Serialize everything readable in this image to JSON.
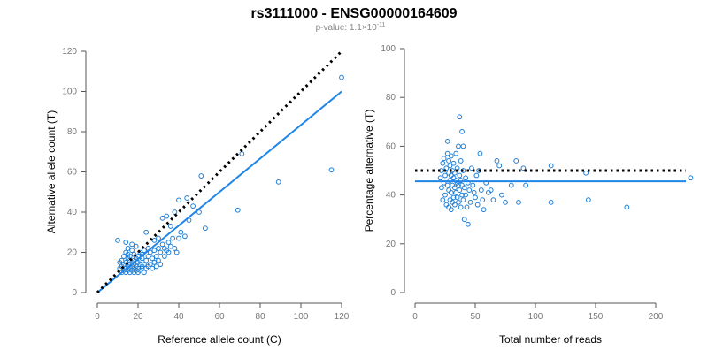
{
  "header": {
    "title": "rs3111000 - ENSG00000164609",
    "pvalue_prefix": "p-value: 1.1×10",
    "pvalue_exponent": "-11"
  },
  "colors": {
    "points": "#1f7ed6",
    "fit_line": "#1f86e8",
    "reference_line": "#000000",
    "axis": "#555555",
    "tick_text": "#777777"
  },
  "chart_data": [
    {
      "id": "left",
      "type": "scatter",
      "title": "",
      "xlabel": "Reference allele count (C)",
      "ylabel": "Alternative allele count (T)",
      "xlim": [
        0,
        120
      ],
      "ylim": [
        0,
        120
      ],
      "xticks": [
        0,
        20,
        40,
        60,
        80,
        100,
        120
      ],
      "yticks": [
        0,
        20,
        40,
        60,
        80,
        100,
        120
      ],
      "reference_line": {
        "style": "dotted",
        "from": [
          0,
          0
        ],
        "to": [
          120,
          120
        ]
      },
      "fit_line": {
        "style": "solid",
        "from": [
          0,
          0
        ],
        "to": [
          120,
          100
        ]
      },
      "points": [
        [
          10,
          26
        ],
        [
          11,
          12
        ],
        [
          11,
          15
        ],
        [
          12,
          10
        ],
        [
          12,
          13
        ],
        [
          12,
          16
        ],
        [
          13,
          11
        ],
        [
          13,
          14
        ],
        [
          13,
          18
        ],
        [
          14,
          10
        ],
        [
          14,
          12
        ],
        [
          14,
          15
        ],
        [
          14,
          20
        ],
        [
          14,
          25
        ],
        [
          15,
          11
        ],
        [
          15,
          13
        ],
        [
          15,
          17
        ],
        [
          15,
          19
        ],
        [
          15,
          22
        ],
        [
          16,
          10
        ],
        [
          16,
          12
        ],
        [
          16,
          14
        ],
        [
          16,
          16
        ],
        [
          16,
          18
        ],
        [
          17,
          11
        ],
        [
          17,
          13
        ],
        [
          17,
          15
        ],
        [
          17,
          21
        ],
        [
          17,
          24
        ],
        [
          18,
          10
        ],
        [
          18,
          12
        ],
        [
          18,
          14
        ],
        [
          18,
          16
        ],
        [
          18,
          19
        ],
        [
          19,
          11
        ],
        [
          19,
          13
        ],
        [
          19,
          17
        ],
        [
          19,
          23
        ],
        [
          20,
          10
        ],
        [
          20,
          12
        ],
        [
          20,
          15
        ],
        [
          20,
          18
        ],
        [
          21,
          11
        ],
        [
          21,
          14
        ],
        [
          21,
          16
        ],
        [
          21,
          20
        ],
        [
          22,
          12
        ],
        [
          22,
          13
        ],
        [
          22,
          17
        ],
        [
          22,
          19
        ],
        [
          23,
          10
        ],
        [
          23,
          14
        ],
        [
          23,
          21
        ],
        [
          24,
          12
        ],
        [
          24,
          16
        ],
        [
          24,
          30
        ],
        [
          25,
          13
        ],
        [
          25,
          18
        ],
        [
          25,
          22
        ],
        [
          26,
          14
        ],
        [
          26,
          20
        ],
        [
          27,
          12
        ],
        [
          27,
          17
        ],
        [
          28,
          15
        ],
        [
          28,
          21
        ],
        [
          28,
          26
        ],
        [
          29,
          13
        ],
        [
          29,
          18
        ],
        [
          30,
          16
        ],
        [
          30,
          22
        ],
        [
          30,
          27
        ],
        [
          31,
          14
        ],
        [
          31,
          20
        ],
        [
          32,
          24
        ],
        [
          32,
          37
        ],
        [
          33,
          18
        ],
        [
          33,
          22
        ],
        [
          34,
          21
        ],
        [
          34,
          38
        ],
        [
          35,
          20
        ],
        [
          35,
          25
        ],
        [
          36,
          23
        ],
        [
          36,
          33
        ],
        [
          37,
          27
        ],
        [
          38,
          22
        ],
        [
          38,
          40
        ],
        [
          39,
          20
        ],
        [
          40,
          27
        ],
        [
          40,
          46
        ],
        [
          41,
          30
        ],
        [
          43,
          28
        ],
        [
          44,
          47
        ],
        [
          45,
          36
        ],
        [
          47,
          43
        ],
        [
          50,
          40
        ],
        [
          51,
          58
        ],
        [
          53,
          32
        ],
        [
          69,
          41
        ],
        [
          71,
          69
        ],
        [
          89,
          55
        ],
        [
          115,
          61
        ],
        [
          120,
          107
        ]
      ]
    },
    {
      "id": "right",
      "type": "scatter",
      "title": "",
      "xlabel": "Total number of reads",
      "ylabel": "Percentage alternative (T)",
      "xlim": [
        0,
        225
      ],
      "ylim": [
        0,
        100
      ],
      "xticks": [
        0,
        50,
        100,
        150,
        200
      ],
      "yticks": [
        0,
        20,
        40,
        60,
        80,
        100
      ],
      "reference_line": {
        "style": "dotted",
        "from": [
          0,
          50
        ],
        "to": [
          225,
          50
        ]
      },
      "fit_line": {
        "style": "solid",
        "from": [
          0,
          45.6
        ],
        "to": [
          225,
          45.6
        ]
      },
      "points": [
        [
          21,
          47
        ],
        [
          22,
          43
        ],
        [
          22,
          50
        ],
        [
          23,
          38
        ],
        [
          23,
          53
        ],
        [
          24,
          45
        ],
        [
          24,
          55
        ],
        [
          25,
          40
        ],
        [
          25,
          48
        ],
        [
          26,
          36
        ],
        [
          26,
          51
        ],
        [
          27,
          44
        ],
        [
          27,
          57
        ],
        [
          27,
          62
        ],
        [
          28,
          35
        ],
        [
          28,
          42
        ],
        [
          28,
          49
        ],
        [
          28,
          54
        ],
        [
          29,
          38
        ],
        [
          29,
          46
        ],
        [
          29,
          52
        ],
        [
          30,
          34
        ],
        [
          30,
          41
        ],
        [
          30,
          48
        ],
        [
          30,
          56
        ],
        [
          31,
          37
        ],
        [
          31,
          44
        ],
        [
          31,
          50
        ],
        [
          32,
          39
        ],
        [
          32,
          47
        ],
        [
          32,
          53
        ],
        [
          33,
          36
        ],
        [
          33,
          43
        ],
        [
          33,
          49
        ],
        [
          34,
          41
        ],
        [
          34,
          46
        ],
        [
          34,
          57
        ],
        [
          35,
          39
        ],
        [
          35,
          45
        ],
        [
          35,
          51
        ],
        [
          36,
          37
        ],
        [
          36,
          44
        ],
        [
          36,
          60
        ],
        [
          37,
          42
        ],
        [
          37,
          48
        ],
        [
          37,
          72
        ],
        [
          38,
          35
        ],
        [
          38,
          46
        ],
        [
          38,
          54
        ],
        [
          39,
          40
        ],
        [
          39,
          44
        ],
        [
          39,
          66
        ],
        [
          40,
          38
        ],
        [
          40,
          50
        ],
        [
          40,
          60
        ],
        [
          41,
          30
        ],
        [
          41,
          43
        ],
        [
          42,
          40
        ],
        [
          42,
          47
        ],
        [
          43,
          35
        ],
        [
          44,
          28
        ],
        [
          44,
          45
        ],
        [
          45,
          42
        ],
        [
          46,
          37
        ],
        [
          47,
          51
        ],
        [
          48,
          44
        ],
        [
          49,
          41
        ],
        [
          50,
          39
        ],
        [
          51,
          48
        ],
        [
          52,
          36
        ],
        [
          53,
          50
        ],
        [
          54,
          57
        ],
        [
          55,
          42
        ],
        [
          56,
          38
        ],
        [
          57,
          34
        ],
        [
          59,
          45
        ],
        [
          61,
          41
        ],
        [
          63,
          42
        ],
        [
          65,
          38
        ],
        [
          68,
          54
        ],
        [
          70,
          52
        ],
        [
          72,
          40
        ],
        [
          75,
          37
        ],
        [
          80,
          44
        ],
        [
          84,
          54
        ],
        [
          86,
          37
        ],
        [
          90,
          51
        ],
        [
          92,
          44
        ],
        [
          113,
          52
        ],
        [
          113,
          37
        ],
        [
          142,
          49
        ],
        [
          144,
          38
        ],
        [
          176,
          35
        ],
        [
          229,
          47
        ]
      ]
    }
  ]
}
